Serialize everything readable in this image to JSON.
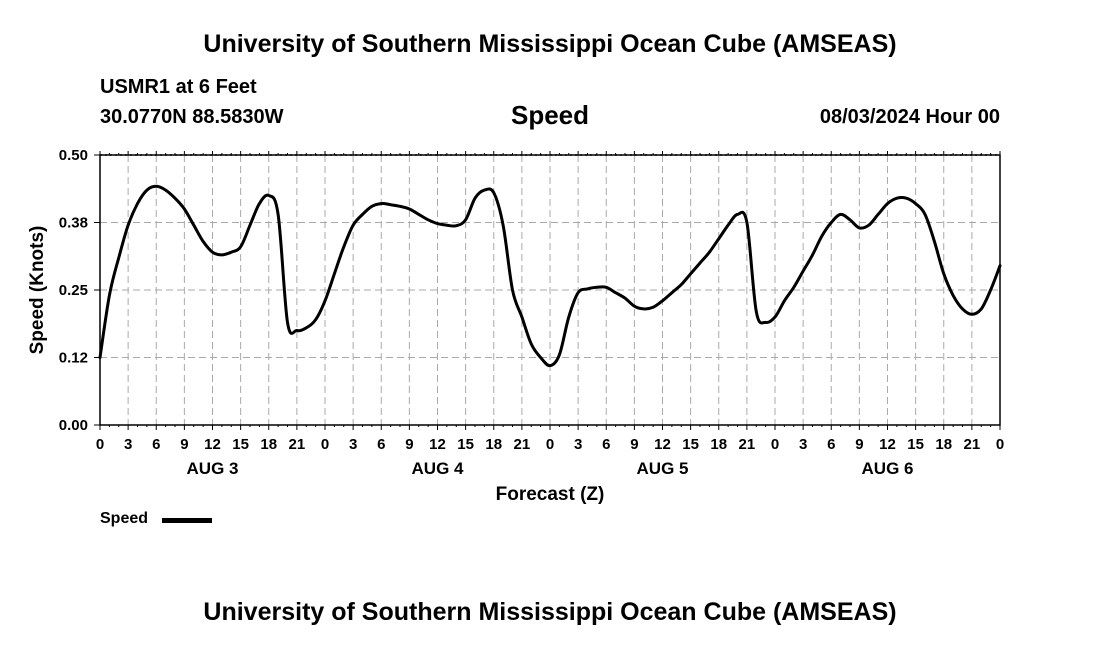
{
  "header": {
    "title": "University of Southern Mississippi Ocean Cube (AMSEAS)",
    "station": "USMR1 at 6 Feet",
    "coords": "30.0770N  88.5830W",
    "variable": "Speed",
    "datetime": "08/03/2024 Hour 00"
  },
  "footer": {
    "title": "University of Southern Mississippi Ocean Cube (AMSEAS)"
  },
  "legend": {
    "label": "Speed",
    "color": "#000000"
  },
  "chart_data": {
    "type": "line",
    "title": "Speed",
    "xlabel": "Forecast (Z)",
    "ylabel": "Speed (Knots)",
    "xlim": [
      0,
      96
    ],
    "ylim": [
      0,
      0.5
    ],
    "y_ticks": [
      "0.00",
      "0.12",
      "0.25",
      "0.38",
      "0.50"
    ],
    "y_tick_values": [
      0,
      0.125,
      0.25,
      0.375,
      0.5
    ],
    "x_tick_labels": [
      "0",
      "3",
      "6",
      "9",
      "12",
      "15",
      "18",
      "21",
      "0",
      "3",
      "6",
      "9",
      "12",
      "15",
      "18",
      "21",
      "0",
      "3",
      "6",
      "9",
      "12",
      "15",
      "18",
      "21",
      "0",
      "3",
      "6",
      "9",
      "12",
      "15",
      "18",
      "21",
      "0"
    ],
    "day_labels": [
      {
        "label": "AUG 3",
        "center_hour": 12
      },
      {
        "label": "AUG 4",
        "center_hour": 36
      },
      {
        "label": "AUG 5",
        "center_hour": 60
      },
      {
        "label": "AUG 6",
        "center_hour": 84
      }
    ],
    "grid": true,
    "series": [
      {
        "name": "Speed",
        "color": "#000000",
        "x": [
          0,
          1,
          2,
          3,
          4,
          5,
          6,
          7,
          8,
          9,
          10,
          11,
          12,
          13,
          14,
          15,
          16,
          17,
          18,
          19,
          20,
          21,
          22,
          23,
          24,
          25,
          26,
          27,
          28,
          29,
          30,
          31,
          32,
          33,
          34,
          35,
          36,
          37,
          38,
          39,
          40,
          41,
          42,
          43,
          44,
          45,
          46,
          47,
          48,
          49,
          50,
          51,
          52,
          53,
          54,
          55,
          56,
          57,
          58,
          59,
          60,
          61,
          62,
          63,
          64,
          65,
          66,
          67,
          68,
          69,
          70,
          71,
          72,
          73,
          74,
          75,
          76,
          77,
          78,
          79,
          80,
          81,
          82,
          83,
          84,
          85,
          86,
          87,
          88,
          89,
          90,
          91,
          92,
          93,
          94,
          95,
          96
        ],
        "values": [
          0.125,
          0.24,
          0.31,
          0.37,
          0.41,
          0.435,
          0.442,
          0.435,
          0.42,
          0.4,
          0.37,
          0.34,
          0.32,
          0.315,
          0.32,
          0.33,
          0.37,
          0.41,
          0.425,
          0.39,
          0.19,
          0.175,
          0.18,
          0.195,
          0.23,
          0.28,
          0.33,
          0.37,
          0.39,
          0.405,
          0.41,
          0.408,
          0.405,
          0.4,
          0.39,
          0.38,
          0.373,
          0.37,
          0.369,
          0.38,
          0.42,
          0.435,
          0.43,
          0.37,
          0.25,
          0.2,
          0.15,
          0.125,
          0.11,
          0.13,
          0.2,
          0.245,
          0.252,
          0.255,
          0.255,
          0.245,
          0.235,
          0.22,
          0.215,
          0.218,
          0.23,
          0.245,
          0.26,
          0.28,
          0.3,
          0.32,
          0.345,
          0.37,
          0.39,
          0.375,
          0.21,
          0.19,
          0.2,
          0.23,
          0.255,
          0.285,
          0.315,
          0.35,
          0.375,
          0.39,
          0.38,
          0.365,
          0.37,
          0.39,
          0.41,
          0.42,
          0.42,
          0.41,
          0.39,
          0.34,
          0.28,
          0.24,
          0.215,
          0.205,
          0.215,
          0.25,
          0.295
        ]
      }
    ]
  }
}
